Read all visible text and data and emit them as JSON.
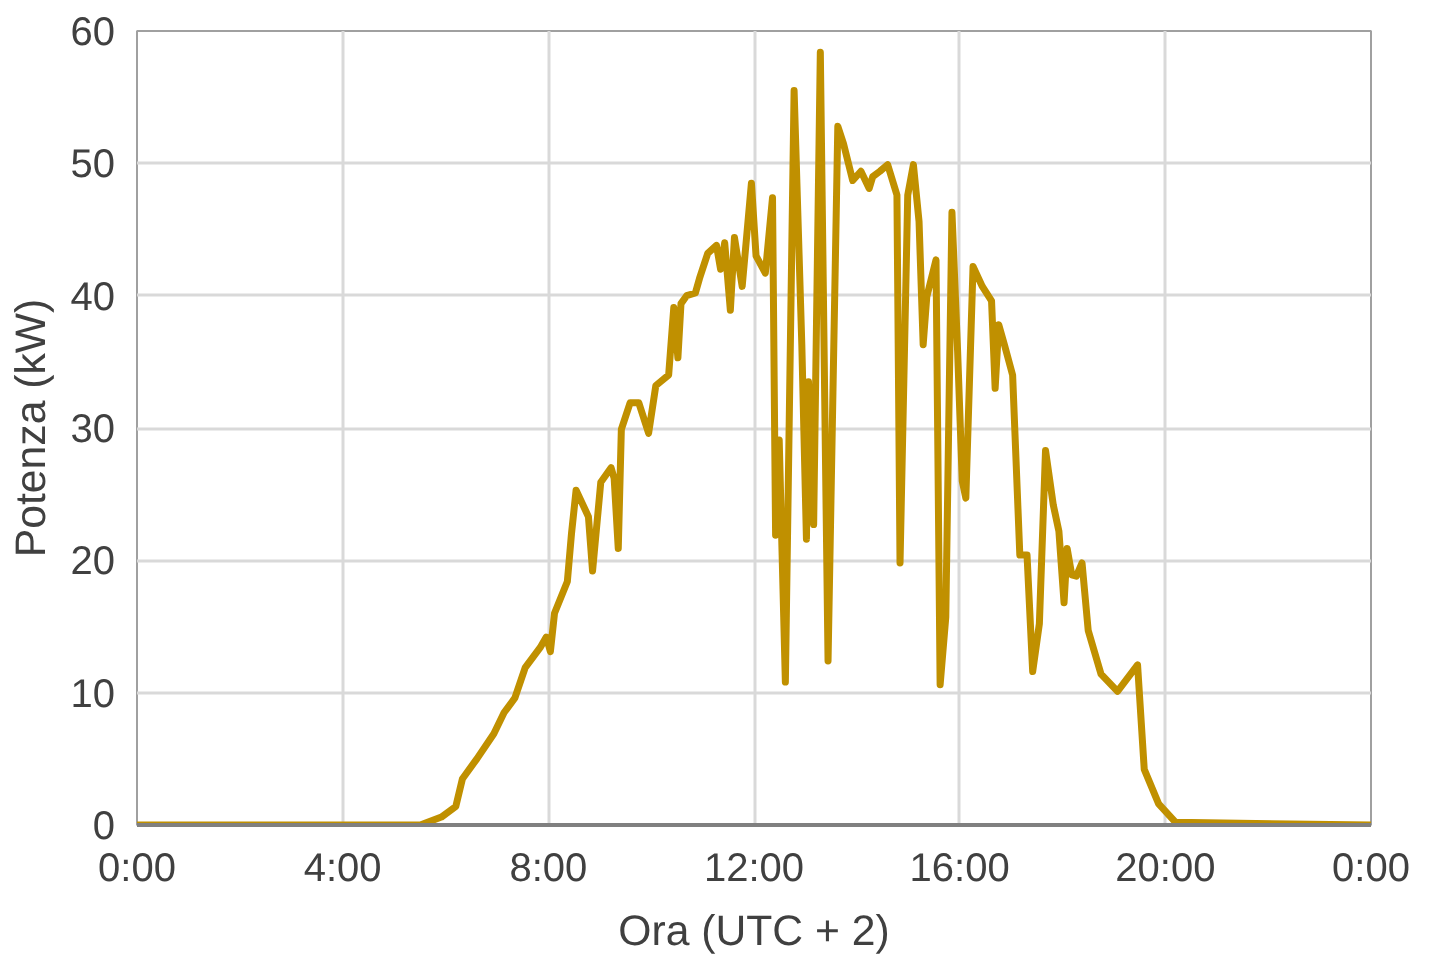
{
  "chart_data": {
    "type": "line",
    "xlabel": "Ora (UTC + 2)",
    "ylabel": "Potenza (kW)",
    "xlim": [
      0,
      24
    ],
    "ylim": [
      0,
      60
    ],
    "xticks": [
      {
        "value": 0,
        "label": "0:00"
      },
      {
        "value": 4,
        "label": "4:00"
      },
      {
        "value": 8,
        "label": "8:00"
      },
      {
        "value": 12,
        "label": "12:00"
      },
      {
        "value": 16,
        "label": "16:00"
      },
      {
        "value": 20,
        "label": "20:00"
      },
      {
        "value": 24,
        "label": "0:00"
      }
    ],
    "yticks": [
      0,
      10,
      20,
      30,
      40,
      50,
      60
    ],
    "grid": true,
    "marker": "none",
    "line_style": "solid",
    "series": [
      {
        "color": "#c09000",
        "x": [
          0,
          5.51,
          5.92,
          6.2,
          6.33,
          6.61,
          6.94,
          7.14,
          7.35,
          7.55,
          7.84,
          7.96,
          8.04,
          8.12,
          8.37,
          8.45,
          8.54,
          8.78,
          8.86,
          9.02,
          9.22,
          9.28,
          9.36,
          9.42,
          9.59,
          9.76,
          9.95,
          10.09,
          10.34,
          10.44,
          10.52,
          10.58,
          10.69,
          10.86,
          10.94,
          11.1,
          11.27,
          11.35,
          11.43,
          11.54,
          11.62,
          11.77,
          11.95,
          12.04,
          12.22,
          12.36,
          12.42,
          12.49,
          12.61,
          12.78,
          12.93,
          13.02,
          13.06,
          13.16,
          13.29,
          13.44,
          13.63,
          13.74,
          13.92,
          14.08,
          14.24,
          14.31,
          14.45,
          14.6,
          14.78,
          14.84,
          14.99,
          15.1,
          15.21,
          15.29,
          15.36,
          15.54,
          15.62,
          15.73,
          15.85,
          15.96,
          16.05,
          16.12,
          16.26,
          16.44,
          16.62,
          16.69,
          16.76,
          16.87,
          17.03,
          17.17,
          17.31,
          17.42,
          17.55,
          17.67,
          17.82,
          17.93,
          18.03,
          18.09,
          18.18,
          18.27,
          18.38,
          18.5,
          18.75,
          19.07,
          19.46,
          19.59,
          19.87,
          20.2,
          24
        ],
        "values": [
          0,
          0,
          0.6,
          1.4,
          3.5,
          5.0,
          6.9,
          8.5,
          9.6,
          11.9,
          13.4,
          14.2,
          13.1,
          16.0,
          18.4,
          22.0,
          25.3,
          23.3,
          19.2,
          25.9,
          27.0,
          26.2,
          20.9,
          29.9,
          31.9,
          31.9,
          29.6,
          33.2,
          34.0,
          39.1,
          35.3,
          39.4,
          40.0,
          40.2,
          41.3,
          43.2,
          43.8,
          42.0,
          44.0,
          38.9,
          44.4,
          40.7,
          48.5,
          43.0,
          41.7,
          47.4,
          21.9,
          29.1,
          10.8,
          55.5,
          36.3,
          21.6,
          33.5,
          22.7,
          58.4,
          12.4,
          52.8,
          51.5,
          48.7,
          49.4,
          48.1,
          49.0,
          49.4,
          49.9,
          47.6,
          19.8,
          47.6,
          49.9,
          45.6,
          36.3,
          39.9,
          42.7,
          10.6,
          15.7,
          46.3,
          35.8,
          26.0,
          24.7,
          42.2,
          40.7,
          39.6,
          33.0,
          37.8,
          36.3,
          34.0,
          20.4,
          20.4,
          11.6,
          15.2,
          28.3,
          24.2,
          22.2,
          16.8,
          20.9,
          18.9,
          18.8,
          19.8,
          14.7,
          11.4,
          10.1,
          12.1,
          4.2,
          1.6,
          0.2,
          0
        ]
      }
    ]
  }
}
